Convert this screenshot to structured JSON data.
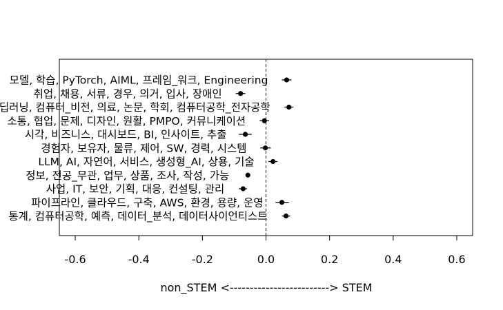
{
  "chart_data": {
    "type": "scatter",
    "subtype": "dot-plot-with-error-bars",
    "title": "",
    "xlabel": "non_STEM <-------------------------> STEM",
    "ylabel": "",
    "xlim": [
      -0.65,
      0.65
    ],
    "x_ticks": [
      -0.6,
      -0.4,
      -0.2,
      0.0,
      0.2,
      0.4,
      0.6
    ],
    "x_tick_labels": [
      "-0.6",
      "-0.4",
      "-0.2",
      "0.0",
      "0.2",
      "0.4",
      "0.6"
    ],
    "reference_line": {
      "x": 0,
      "style": "dashed"
    },
    "grid": false,
    "legend": "none",
    "point_color": "#000000",
    "points": [
      {
        "label": "모델, 학습, PyTorch, AIML, 프레임_워크, Engineering",
        "estimate": 0.065,
        "ci": [
          0.05,
          0.08
        ]
      },
      {
        "label": "취업, 채용, 서류, 경우, 의거, 입사, 장애인",
        "estimate": -0.08,
        "ci": [
          -0.095,
          -0.065
        ]
      },
      {
        "label": "딥러닝, 컴퓨터_비전, 의료, 논문, 학회, 컴퓨터공학_전자공학",
        "estimate": 0.072,
        "ci": [
          0.058,
          0.086
        ]
      },
      {
        "label": "소통, 협업, 문제, 디자인, 원활, PMPO, 커뮤니케이션",
        "estimate": -0.005,
        "ci": [
          -0.02,
          0.01
        ]
      },
      {
        "label": "시각, 비즈니스, 대시보드, BI, 인사이트, 추출",
        "estimate": -0.065,
        "ci": [
          -0.085,
          -0.045
        ]
      },
      {
        "label": "경험자, 보유자, 물류, 제어, SW, 경력, 시스템",
        "estimate": -0.002,
        "ci": [
          -0.018,
          0.015
        ]
      },
      {
        "label": "LLM, AI, 자연어, 서비스, 생성형_AI, 상용, 기술",
        "estimate": 0.022,
        "ci": [
          0.008,
          0.036
        ]
      },
      {
        "label": "정보, 전공_무관, 업무, 상품, 조사, 작성, 가능",
        "estimate": -0.057,
        "ci": [
          -0.064,
          -0.05
        ]
      },
      {
        "label": "사업, IT, 보안, 기획, 대응, 컨설팅, 관리",
        "estimate": -0.072,
        "ci": [
          -0.085,
          -0.06
        ]
      },
      {
        "label": "파이프라인, 클라우드, 구축, AWS, 환경, 용량, 운영",
        "estimate": 0.05,
        "ci": [
          0.03,
          0.072
        ]
      },
      {
        "label": "통계, 컴퓨터공학, 예측, 데이터_분석, 데이터사이언티스트",
        "estimate": 0.063,
        "ci": [
          0.05,
          0.076
        ]
      }
    ]
  }
}
